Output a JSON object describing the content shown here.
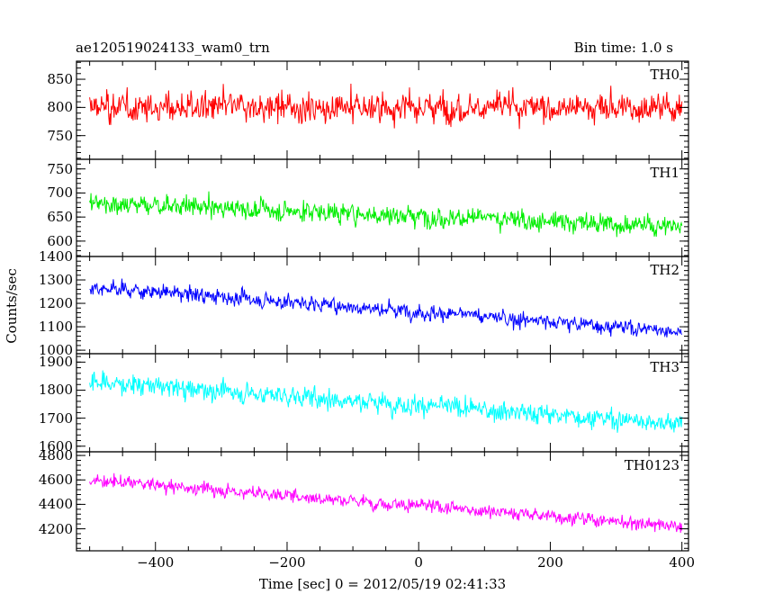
{
  "header": {
    "left_title": "ae120519024133_wam0_trn",
    "right_title": "Bin time: 1.0 s"
  },
  "ylabel": "Counts/sec",
  "xlabel": "Time [sec] 0 = 2012/05/19 02:41:33",
  "chart_data": {
    "type": "line",
    "title": "ae120519024133_wam0_trn",
    "subtitle": "Bin time: 1.0 s",
    "xlabel": "Time [sec] 0 = 2012/05/19 02:41:33",
    "ylabel": "Counts/sec",
    "xlim": [
      -520,
      410
    ],
    "x_range_of_data": [
      -500,
      400
    ],
    "x_step": 1.0,
    "xticks": [
      -400,
      -200,
      0,
      200,
      400
    ],
    "grid": false,
    "panels": [
      {
        "name": "TH0",
        "color": "#ff0000",
        "ylim": [
          708,
          882
        ],
        "yticks": [
          750,
          800,
          850
        ],
        "trend_start": 800,
        "trend_end": 800,
        "noise_sd": 30
      },
      {
        "name": "TH1",
        "color": "#00ee00",
        "ylim": [
          568,
          770
        ],
        "yticks": [
          600,
          650,
          700,
          750
        ],
        "trend_start": 680,
        "trend_end": 630,
        "noise_sd": 25
      },
      {
        "name": "TH2",
        "color": "#0000ff",
        "ylim": [
          985,
          1400
        ],
        "yticks": [
          1000,
          1100,
          1200,
          1300,
          1400
        ],
        "trend_start": 1270,
        "trend_end": 1080,
        "noise_sd": 38
      },
      {
        "name": "TH3",
        "color": "#00ffff",
        "ylim": [
          1580,
          1930
        ],
        "yticks": [
          1600,
          1700,
          1800,
          1900
        ],
        "trend_start": 1830,
        "trend_end": 1680,
        "noise_sd": 40
      },
      {
        "name": "TH0123",
        "color": "#ff00ff",
        "ylim": [
          4020,
          4830
        ],
        "yticks": [
          4200,
          4400,
          4600,
          4800
        ],
        "trend_start": 4600,
        "trend_end": 4220,
        "noise_sd": 60
      }
    ]
  }
}
